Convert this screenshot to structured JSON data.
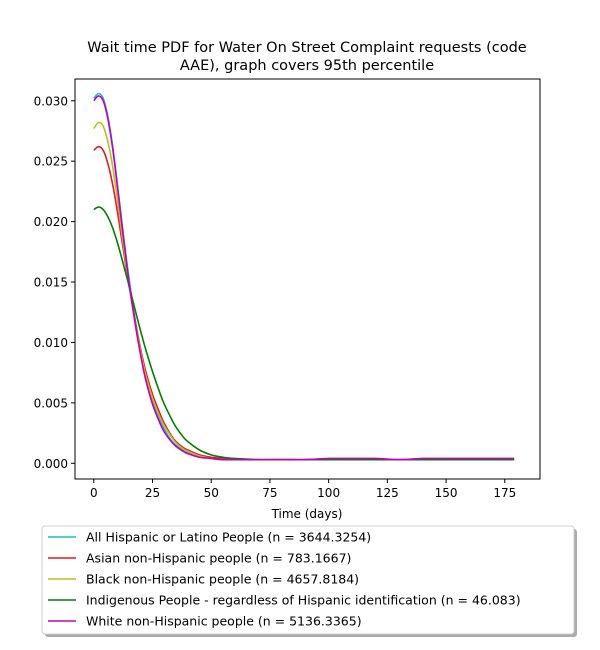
{
  "chart_data": {
    "type": "line",
    "title_lines": [
      "Wait time PDF for Water On Street Complaint  requests (code",
      "AAE), graph covers 95th percentile"
    ],
    "xlabel": "Time (days)",
    "ylabel": "",
    "xlim": [
      -8,
      190
    ],
    "ylim": [
      -0.0013,
      0.0318
    ],
    "x_ticks": [
      0,
      25,
      50,
      75,
      100,
      125,
      150,
      175
    ],
    "x_tick_labels": [
      "0",
      "25",
      "50",
      "75",
      "100",
      "125",
      "150",
      "175"
    ],
    "y_ticks": [
      0.0,
      0.005,
      0.01,
      0.015,
      0.02,
      0.025,
      0.03
    ],
    "y_tick_labels": [
      "0.000",
      "0.005",
      "0.010",
      "0.015",
      "0.020",
      "0.025",
      "0.030"
    ],
    "grid": false,
    "legend_placement": "below plot",
    "x": [
      0,
      2,
      4,
      6,
      8,
      10,
      12,
      15,
      18,
      20,
      22,
      25,
      28,
      30,
      33,
      35,
      38,
      40,
      45,
      50,
      55,
      60,
      70,
      80,
      90,
      100,
      110,
      120,
      130,
      140,
      150,
      160,
      170,
      179
    ],
    "series": [
      {
        "name": "All Hispanic or Latino People (n = 3644.3254)",
        "color": "#17becf",
        "values": [
          0.0302,
          0.0306,
          0.0302,
          0.0287,
          0.0263,
          0.0232,
          0.0199,
          0.0153,
          0.0114,
          0.0092,
          0.0073,
          0.0052,
          0.0036,
          0.0028,
          0.0019,
          0.0015,
          0.0011,
          0.0009,
          0.0006,
          0.0004,
          0.0003,
          0.0003,
          0.0003,
          0.0003,
          0.0003,
          0.0003,
          0.0003,
          0.0003,
          0.0003,
          0.0003,
          0.0003,
          0.0003,
          0.0003,
          0.0003
        ]
      },
      {
        "name": "Asian non-Hispanic people (n = 783.1667)",
        "color": "#e41a1c",
        "values": [
          0.0259,
          0.0262,
          0.0259,
          0.0248,
          0.0231,
          0.0209,
          0.0184,
          0.0147,
          0.0114,
          0.0094,
          0.0077,
          0.0057,
          0.0042,
          0.0033,
          0.0023,
          0.0018,
          0.0013,
          0.0011,
          0.0007,
          0.0005,
          0.0004,
          0.0003,
          0.0003,
          0.0003,
          0.0003,
          0.0003,
          0.0003,
          0.0003,
          0.0003,
          0.0003,
          0.0003,
          0.0003,
          0.0003,
          0.0003
        ]
      },
      {
        "name": "Black non-Hispanic people (n = 4657.8184)",
        "color": "#bcbd22",
        "values": [
          0.0277,
          0.0282,
          0.0279,
          0.0266,
          0.0246,
          0.0219,
          0.0189,
          0.0148,
          0.0112,
          0.0092,
          0.0074,
          0.0054,
          0.0039,
          0.0031,
          0.0022,
          0.0017,
          0.0012,
          0.001,
          0.0006,
          0.0004,
          0.0003,
          0.0003,
          0.0003,
          0.0003,
          0.0003,
          0.0003,
          0.0003,
          0.0003,
          0.0003,
          0.0003,
          0.0003,
          0.0003,
          0.0003,
          0.0003
        ]
      },
      {
        "name": "Indigenous People - regardless of Hispanic identification (n = 46.083)",
        "color": "#008000",
        "values": [
          0.021,
          0.0212,
          0.021,
          0.0204,
          0.0195,
          0.0183,
          0.0169,
          0.0147,
          0.0124,
          0.0109,
          0.0095,
          0.0076,
          0.0059,
          0.0049,
          0.0037,
          0.003,
          0.0022,
          0.0018,
          0.0011,
          0.0007,
          0.0005,
          0.0004,
          0.0003,
          0.0003,
          0.0003,
          0.0003,
          0.0003,
          0.0003,
          0.0003,
          0.0003,
          0.0003,
          0.0003,
          0.0003,
          0.0003
        ]
      },
      {
        "name": "White non-Hispanic people (n = 5136.3365)",
        "color": "#bf00bf",
        "values": [
          0.03,
          0.0304,
          0.03,
          0.0285,
          0.0261,
          0.023,
          0.0197,
          0.015,
          0.0111,
          0.0089,
          0.007,
          0.0049,
          0.0034,
          0.0026,
          0.0018,
          0.0014,
          0.001,
          0.0008,
          0.0005,
          0.0004,
          0.0003,
          0.0003,
          0.0003,
          0.0003,
          0.0003,
          0.0004,
          0.0004,
          0.0004,
          0.0003,
          0.0004,
          0.0004,
          0.0004,
          0.0004,
          0.0004
        ]
      }
    ]
  }
}
